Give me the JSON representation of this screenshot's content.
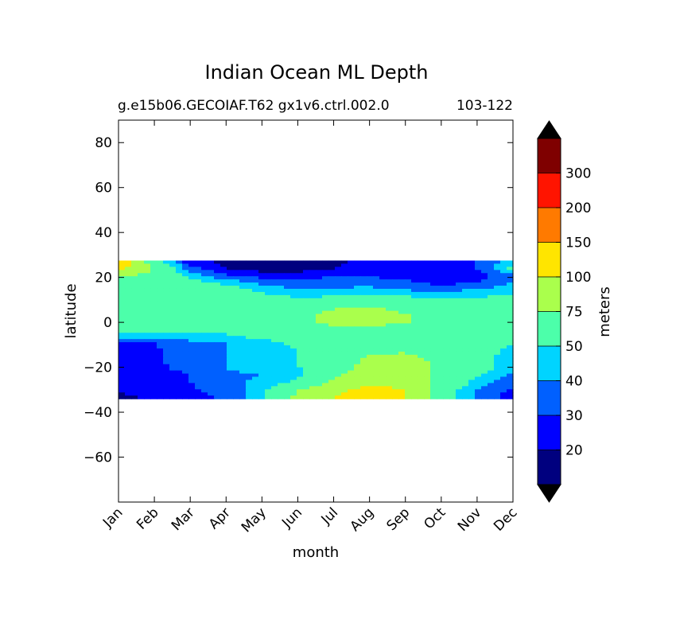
{
  "chart_data": {
    "type": "heatmap",
    "title": "Indian Ocean ML Depth",
    "subtitle_left": "g.e15b06.GECOIAF.T62 gx1v6.ctrl.002.0",
    "subtitle_right": "103-122",
    "xlabel": "month",
    "ylabel": "latitude",
    "x_ticks": [
      "Jan",
      "Feb",
      "Mar",
      "Apr",
      "May",
      "Jun",
      "Jul",
      "Aug",
      "Sep",
      "Oct",
      "Nov",
      "Dec"
    ],
    "y_ticks": [
      80,
      60,
      40,
      20,
      0,
      -20,
      -40,
      -60
    ],
    "ylim": [
      -80,
      90
    ],
    "data_lat_range": [
      -34,
      27.5
    ],
    "colorbar": {
      "label": "meters",
      "levels": [
        0,
        20,
        30,
        40,
        50,
        75,
        100,
        150,
        200,
        300
      ],
      "tick_labels": [
        "20",
        "30",
        "40",
        "50",
        "75",
        "100",
        "150",
        "200",
        "300"
      ],
      "colors": [
        "#00007f",
        "#0000ff",
        "#0060ff",
        "#00d4ff",
        "#4cffaa",
        "#aaff4c",
        "#ffe500",
        "#ff7a00",
        "#ff1400",
        "#7f0000"
      ],
      "extend_colors": {
        "min": "#000000",
        "max": "#000000"
      }
    },
    "months": [
      1,
      2,
      3,
      4,
      5,
      6,
      7,
      8,
      9,
      10,
      11,
      12
    ],
    "latitudes": [
      27,
      24,
      21,
      18,
      15,
      12,
      9,
      6,
      3,
      0,
      -3,
      -6,
      -9,
      -12,
      -15,
      -18,
      -21,
      -24,
      -27,
      -30,
      -33
    ],
    "values": [
      [
        120,
        60,
        22,
        18,
        12,
        12,
        18,
        22,
        20,
        22,
        30,
        45
      ],
      [
        110,
        70,
        35,
        20,
        15,
        15,
        20,
        25,
        22,
        22,
        30,
        55
      ],
      [
        80,
        70,
        45,
        30,
        25,
        25,
        28,
        28,
        25,
        22,
        25,
        40
      ],
      [
        60,
        60,
        55,
        45,
        35,
        32,
        35,
        35,
        32,
        25,
        28,
        40
      ],
      [
        55,
        60,
        60,
        55,
        45,
        40,
        40,
        42,
        38,
        35,
        40,
        45
      ],
      [
        55,
        60,
        60,
        58,
        52,
        48,
        48,
        50,
        48,
        45,
        48,
        52
      ],
      [
        55,
        58,
        60,
        60,
        58,
        55,
        60,
        65,
        60,
        55,
        55,
        55
      ],
      [
        55,
        58,
        60,
        60,
        60,
        65,
        75,
        80,
        70,
        62,
        58,
        55
      ],
      [
        55,
        60,
        60,
        60,
        62,
        70,
        80,
        80,
        78,
        65,
        60,
        55
      ],
      [
        55,
        60,
        60,
        60,
        62,
        68,
        80,
        80,
        76,
        65,
        60,
        58
      ],
      [
        55,
        55,
        55,
        58,
        60,
        65,
        70,
        72,
        65,
        60,
        60,
        55
      ],
      [
        45,
        45,
        45,
        48,
        55,
        60,
        62,
        62,
        60,
        60,
        55,
        52
      ],
      [
        30,
        30,
        38,
        40,
        45,
        55,
        60,
        62,
        60,
        60,
        55,
        50
      ],
      [
        28,
        28,
        38,
        40,
        45,
        50,
        60,
        65,
        70,
        62,
        55,
        48
      ],
      [
        25,
        28,
        35,
        40,
        45,
        50,
        60,
        75,
        80,
        65,
        55,
        45
      ],
      [
        25,
        28,
        35,
        40,
        42,
        50,
        65,
        80,
        85,
        70,
        55,
        45
      ],
      [
        25,
        28,
        32,
        40,
        42,
        48,
        65,
        85,
        85,
        70,
        55,
        42
      ],
      [
        25,
        25,
        30,
        38,
        40,
        48,
        70,
        90,
        90,
        70,
        50,
        38
      ],
      [
        25,
        25,
        30,
        38,
        42,
        55,
        80,
        95,
        90,
        65,
        45,
        32
      ],
      [
        22,
        25,
        28,
        35,
        45,
        75,
        90,
        110,
        100,
        60,
        40,
        28
      ],
      [
        18,
        22,
        25,
        32,
        45,
        80,
        100,
        110,
        100,
        60,
        38,
        25
      ]
    ]
  }
}
